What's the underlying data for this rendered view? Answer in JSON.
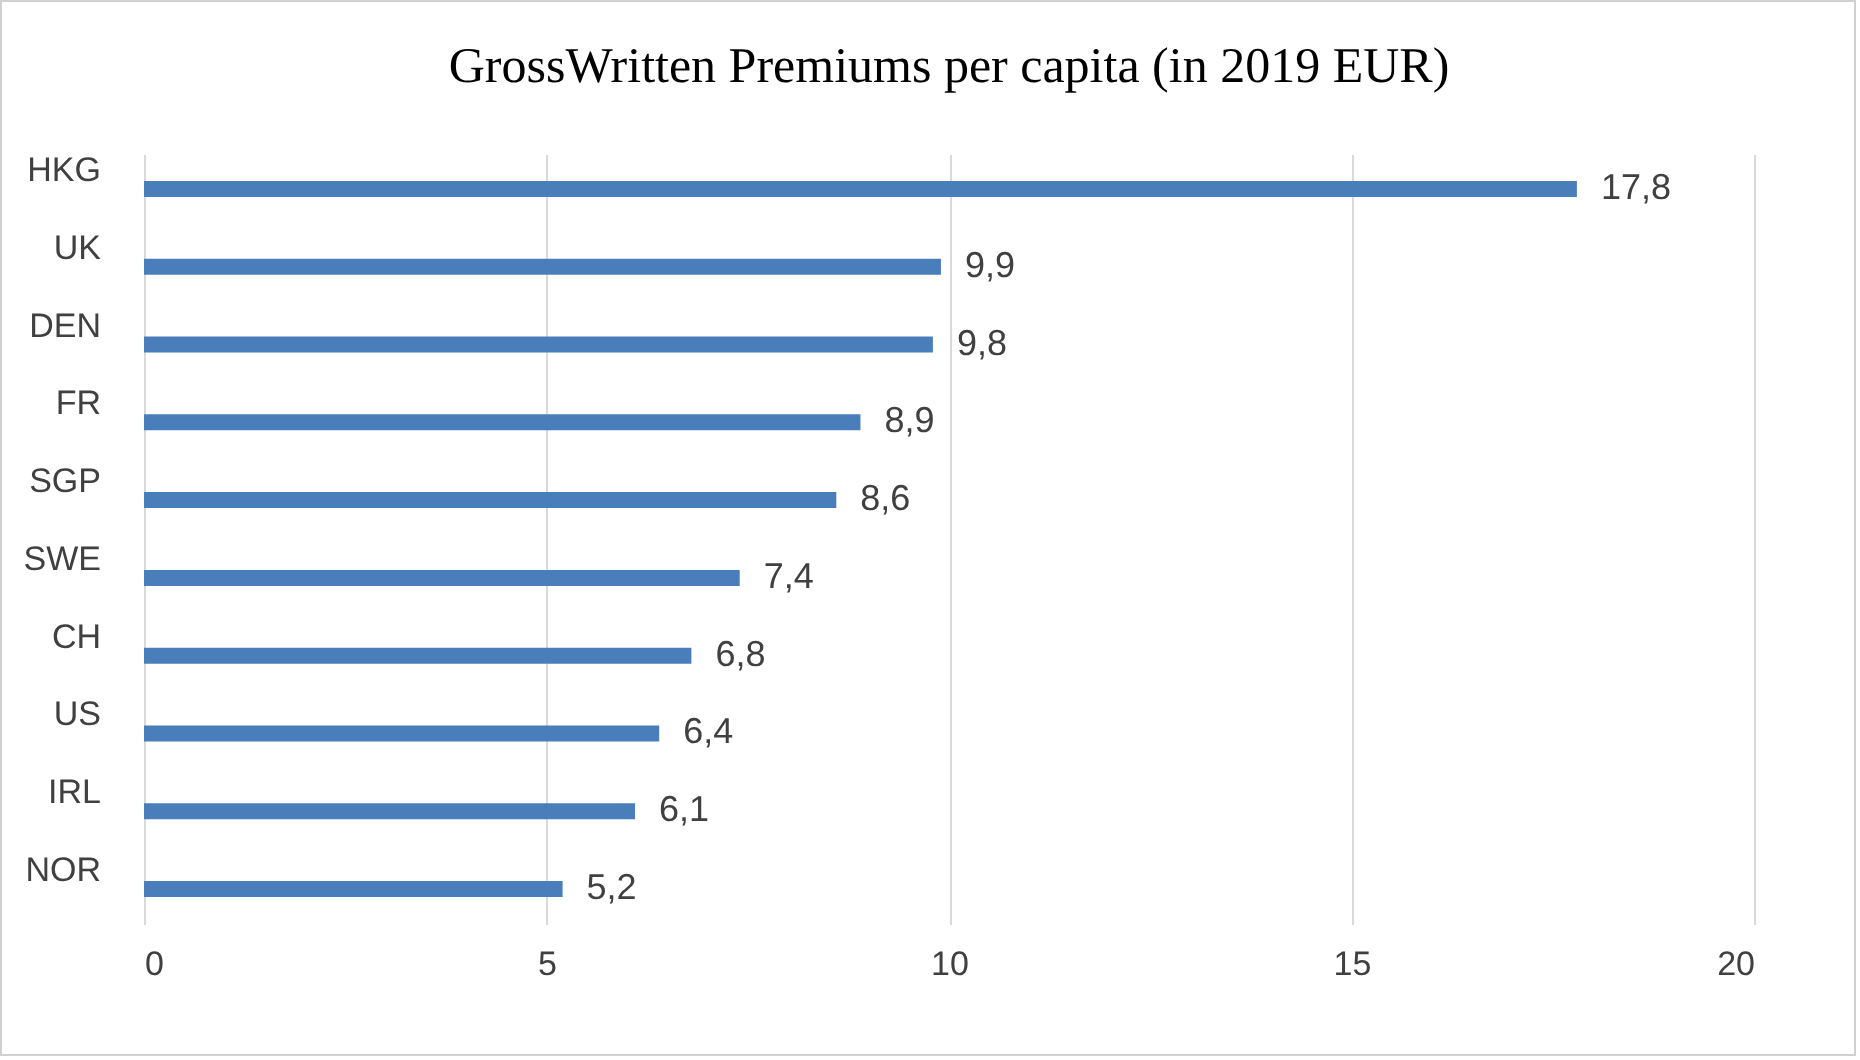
{
  "chart_data": {
    "type": "bar",
    "orientation": "horizontal",
    "title": "GrossWritten Premiums per capita (in 2019 EUR)",
    "categories": [
      "HKG",
      "UK",
      "DEN",
      "FR",
      "SGP",
      "SWE",
      "CH",
      "US",
      "IRL",
      "NOR"
    ],
    "values": [
      17.8,
      9.9,
      9.8,
      8.9,
      8.6,
      7.4,
      6.8,
      6.4,
      6.1,
      5.2
    ],
    "value_labels": [
      "17,8",
      "9,9",
      "9,8",
      "8,9",
      "8,6",
      "7,4",
      "6,8",
      "6,4",
      "6,1",
      "5,2"
    ],
    "color": "#4a7ebb",
    "xlim": [
      0,
      20
    ],
    "xticks": [
      0,
      5,
      10,
      15,
      20
    ],
    "grid": "x"
  }
}
